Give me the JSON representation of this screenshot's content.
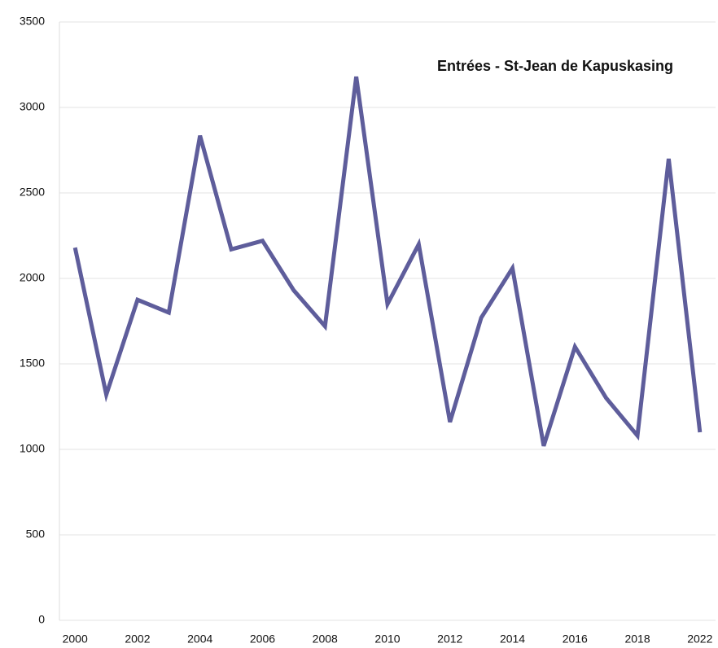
{
  "chart_data": {
    "type": "line",
    "title": "Entrées - St-Jean de Kapuskasing",
    "categories": [
      "2000",
      null,
      "2002",
      null,
      "2004",
      null,
      "2006",
      null,
      "2008",
      null,
      "2010",
      null,
      "2012",
      null,
      "2014",
      null,
      "2016",
      null,
      "2018",
      null,
      "2022"
    ],
    "series": [
      {
        "color": "#5e5d9b",
        "values": [
          2180,
          1320,
          1875,
          1800,
          2835,
          2170,
          2220,
          1930,
          1720,
          3180,
          1850,
          2200,
          1160,
          1770,
          2060,
          1020,
          1600,
          1300,
          1080,
          2700,
          1100
        ]
      }
    ],
    "ylim": [
      0,
      3500
    ],
    "yticks": [
      0,
      500,
      1000,
      1500,
      2000,
      2500,
      3000,
      3500
    ],
    "grid": true
  }
}
